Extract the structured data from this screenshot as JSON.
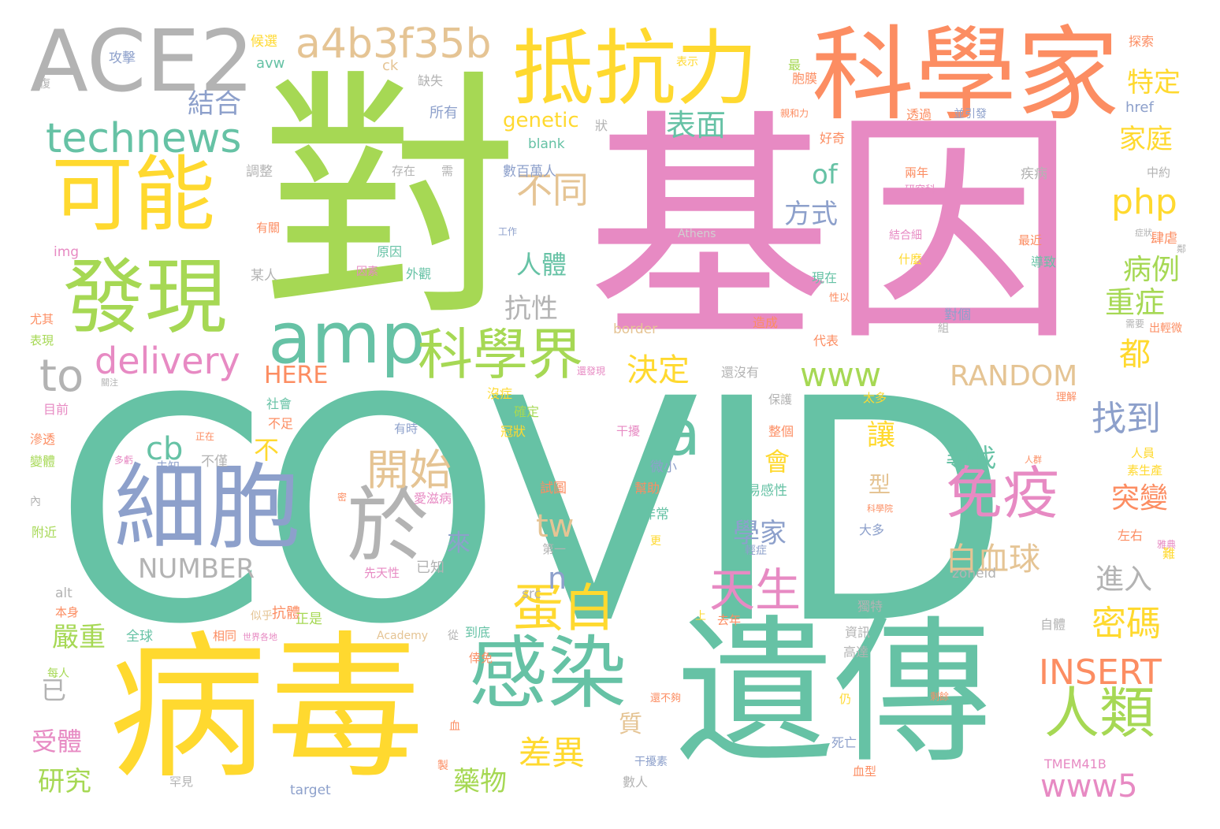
{
  "palette": {
    "c0": "#66c2a5",
    "c1": "#fc8d62",
    "c2": "#8da0cb",
    "c3": "#e78ac3",
    "c4": "#a6d854",
    "c5": "#ffd92f",
    "c6": "#e5c494",
    "c7": "#b3b3b3"
  },
  "words": [
    "COVID",
    "基因",
    "對",
    "病毒",
    "遺傳",
    "科學家",
    "ACE2",
    "抵抗力",
    "可能",
    "發現",
    "細胞",
    "感染",
    "amp",
    "a4b3f35b",
    "technews",
    "於",
    "免疫",
    "科學界",
    "人類",
    "delivery",
    "a",
    "蛋白",
    "開始",
    "天生",
    "to",
    "結合",
    "不同",
    "表面",
    "php",
    "www",
    "RANDOM",
    "INSERT",
    "www5",
    "NUMBER",
    "決定",
    "白血球",
    "密碼",
    "找到",
    "重症",
    "病例",
    "特定",
    "家庭",
    "差異",
    "藥物",
    "嚴重",
    "研究",
    "受體",
    "cb",
    "tw",
    "n",
    "HERE",
    "of",
    "方式",
    "人體",
    "抗性",
    "尋找",
    "突變",
    "進入",
    "學家",
    "來",
    "會",
    "讓",
    "型",
    "不",
    "已",
    "質",
    "都",
    "genetic",
    "ck",
    "avw",
    "href",
    "blank",
    "img",
    "Athens",
    "border",
    "zoneid",
    "src",
    "alt",
    "target",
    "Academy",
    "TMEM41B",
    "攻擊",
    "候選",
    "表示",
    "缺失",
    "所有",
    "狀",
    "存在",
    "需",
    "數百萬人",
    "調整",
    "原因",
    "外觀",
    "某人",
    "因素",
    "社會",
    "不足",
    "不僅",
    "未知",
    "正在",
    "干擾",
    "微小",
    "幫助",
    "非常",
    "易感性",
    "試圖",
    "愛滋病",
    "先天性",
    "已知",
    "抗體",
    "似乎",
    "正是",
    "全球",
    "相同",
    "到底",
    "從",
    "倖免",
    "世界各地",
    "資訊",
    "高達",
    "獨特",
    "自體",
    "上",
    "去年",
    "第一",
    "大多",
    "輕症",
    "死亡",
    "干擾素",
    "數人",
    "罕見",
    "血型",
    "仍",
    "還不夠",
    "剩餘",
    "雅典",
    "兩年",
    "研究科",
    "疾病",
    "中約",
    "結合細",
    "什麼",
    "最近",
    "導致",
    "肆虐",
    "症狀",
    "出輕微",
    "需要",
    "理解",
    "太多",
    "保護",
    "整個",
    "代表",
    "造成",
    "對個",
    "組",
    "還沒有",
    "還發現",
    "沒症",
    "確定",
    "冠狀",
    "有時",
    "人群",
    "人員",
    "素生產",
    "左右",
    "難",
    "科學院",
    "更",
    "密",
    "血",
    "製",
    "內",
    "附近",
    "變體",
    "滲透",
    "目前",
    "多虧",
    "關注",
    "表現",
    "尤其",
    "每人",
    "本身",
    "工作",
    "有關",
    "最",
    "胞膜",
    "探索",
    "親和力",
    "透過",
    "並引發",
    "好奇",
    "現在",
    "性以",
    "復",
    "鄰"
  ]
}
